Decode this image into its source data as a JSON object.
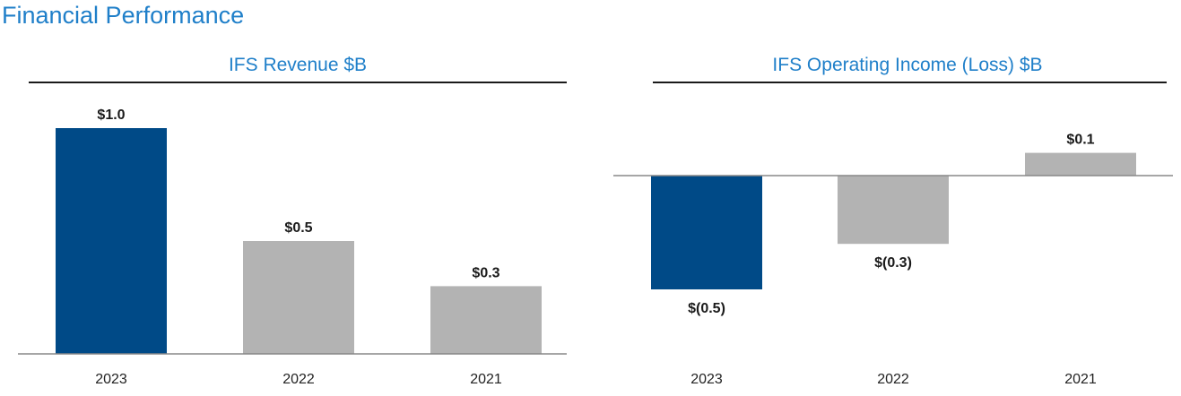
{
  "page": {
    "title": "Financial Performance"
  },
  "colors": {
    "accent": "#1f7fc9",
    "highlight_bar": "#004a87",
    "other_bar": "#b3b3b3",
    "axis": "#888888",
    "text": "#1a1a1a"
  },
  "chart_data": [
    {
      "type": "bar",
      "title": "IFS Revenue $B",
      "categories": [
        "2023",
        "2022",
        "2021"
      ],
      "values": [
        1.0,
        0.5,
        0.3
      ],
      "value_labels": [
        "$1.0",
        "$0.5",
        "$0.3"
      ],
      "highlight_index": 0,
      "ylim": [
        0,
        1.1
      ],
      "xlabel": "",
      "ylabel": "",
      "grid": false
    },
    {
      "type": "bar",
      "title": "IFS Operating Income (Loss) $B",
      "categories": [
        "2023",
        "2022",
        "2021"
      ],
      "values": [
        -0.5,
        -0.3,
        0.1
      ],
      "value_labels": [
        "$(0.5)",
        "$(0.3)",
        "$0.1"
      ],
      "highlight_index": 0,
      "ylim": [
        -0.5,
        0.1
      ],
      "xlabel": "",
      "ylabel": "",
      "grid": false
    }
  ]
}
